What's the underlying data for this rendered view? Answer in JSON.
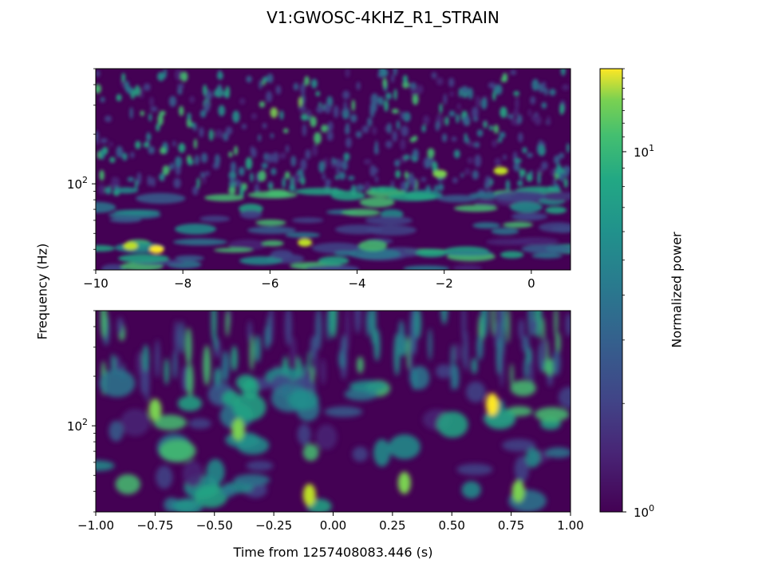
{
  "chart_data": {
    "type": "heatmap",
    "title": "V1:GWOSC-4KHZ_R1_STRAIN",
    "ylabel": "Frequency (Hz)",
    "xlabel": "Time from 1257408083.446 (s)",
    "colorbar": {
      "label": "Normalized power",
      "scale": "log",
      "range": [
        1,
        17
      ],
      "tick_labels": [
        "10^0",
        "10^1"
      ],
      "colormap": "viridis"
    },
    "panels": [
      {
        "name": "top",
        "xlim": [
          -10,
          0.9
        ],
        "ylim": [
          30,
          500
        ],
        "yscale": "log",
        "xticks": [
          -10,
          -8,
          -6,
          -4,
          -2,
          0
        ],
        "xtick_labels": [
          "−10",
          "−8",
          "−6",
          "−4",
          "−2",
          "0"
        ],
        "ytick_label": "10^2",
        "hotspots": [
          {
            "t": -8.6,
            "f": 40,
            "power": 15
          },
          {
            "t": -5.2,
            "f": 44,
            "power": 14
          },
          {
            "t": -9.2,
            "f": 42,
            "power": 12
          },
          {
            "t": -0.7,
            "f": 120,
            "power": 13
          },
          {
            "t": -2.1,
            "f": 115,
            "power": 10
          }
        ]
      },
      {
        "name": "bottom",
        "xlim": [
          -1.0,
          1.0
        ],
        "ylim": [
          30,
          500
        ],
        "yscale": "log",
        "xticks": [
          -1.0,
          -0.75,
          -0.5,
          -0.25,
          0.0,
          0.25,
          0.5,
          0.75,
          1.0
        ],
        "xtick_labels": [
          "−1.00",
          "−0.75",
          "−0.50",
          "−0.25",
          "0.00",
          "0.25",
          "0.50",
          "0.75",
          "1.00"
        ],
        "ytick_label": "10^2",
        "hotspots": [
          {
            "t": 0.67,
            "f": 135,
            "power": 16
          },
          {
            "t": -0.1,
            "f": 38,
            "power": 12
          },
          {
            "t": 0.3,
            "f": 45,
            "power": 11
          },
          {
            "t": 0.78,
            "f": 40,
            "power": 11
          },
          {
            "t": -0.75,
            "f": 125,
            "power": 10
          },
          {
            "t": -0.4,
            "f": 95,
            "power": 9
          }
        ]
      }
    ]
  }
}
